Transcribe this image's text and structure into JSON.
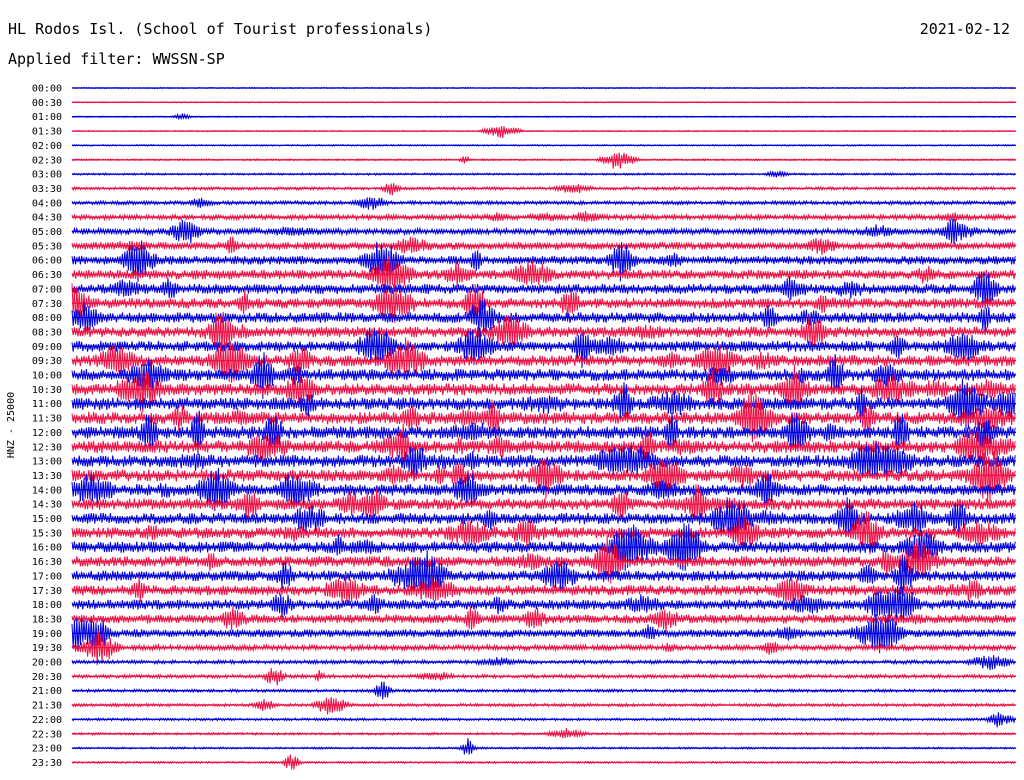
{
  "header": {
    "title": "HL Rodos Isl. (School of Tourist professionals)",
    "filter": "Applied filter: WWSSN-SP",
    "date": "2021-02-12"
  },
  "chart_data": {
    "type": "line",
    "title": "HL Rodos Isl. (School of Tourist professionals)",
    "subtitle": "Applied filter: WWSSN-SP",
    "ylabel": "HNZ - 25000",
    "xlabel": "",
    "date": "2021-02-12",
    "grid": false,
    "colors": [
      "#0000dd",
      "#ee1144"
    ],
    "rows": [
      "00:00",
      "00:30",
      "01:00",
      "01:30",
      "02:00",
      "02:30",
      "03:00",
      "03:30",
      "04:00",
      "04:30",
      "05:00",
      "05:30",
      "06:00",
      "06:30",
      "07:00",
      "07:30",
      "08:00",
      "08:30",
      "09:00",
      "09:30",
      "10:00",
      "10:30",
      "11:00",
      "11:30",
      "12:00",
      "12:30",
      "13:00",
      "13:30",
      "14:00",
      "14:30",
      "15:00",
      "15:30",
      "16:00",
      "16:30",
      "17:00",
      "17:30",
      "18:00",
      "18:30",
      "19:00",
      "19:30",
      "20:00",
      "20:30",
      "21:00",
      "21:30",
      "22:00",
      "22:30",
      "23:00",
      "23:30"
    ],
    "noise_level": [
      0.5,
      0.4,
      0.5,
      0.5,
      0.6,
      0.7,
      0.8,
      1.2,
      1.5,
      2.0,
      2.5,
      3.0,
      3.5,
      3.8,
      4.0,
      4.2,
      4.2,
      4.3,
      4.3,
      4.5,
      4.8,
      4.8,
      5.0,
      5.0,
      5.0,
      5.0,
      5.0,
      4.8,
      4.6,
      4.6,
      4.5,
      4.5,
      4.5,
      4.3,
      4.2,
      4.2,
      4.0,
      3.6,
      3.2,
      2.2,
      1.5,
      1.4,
      1.2,
      1.2,
      1.0,
      0.9,
      0.8,
      0.8
    ]
  }
}
